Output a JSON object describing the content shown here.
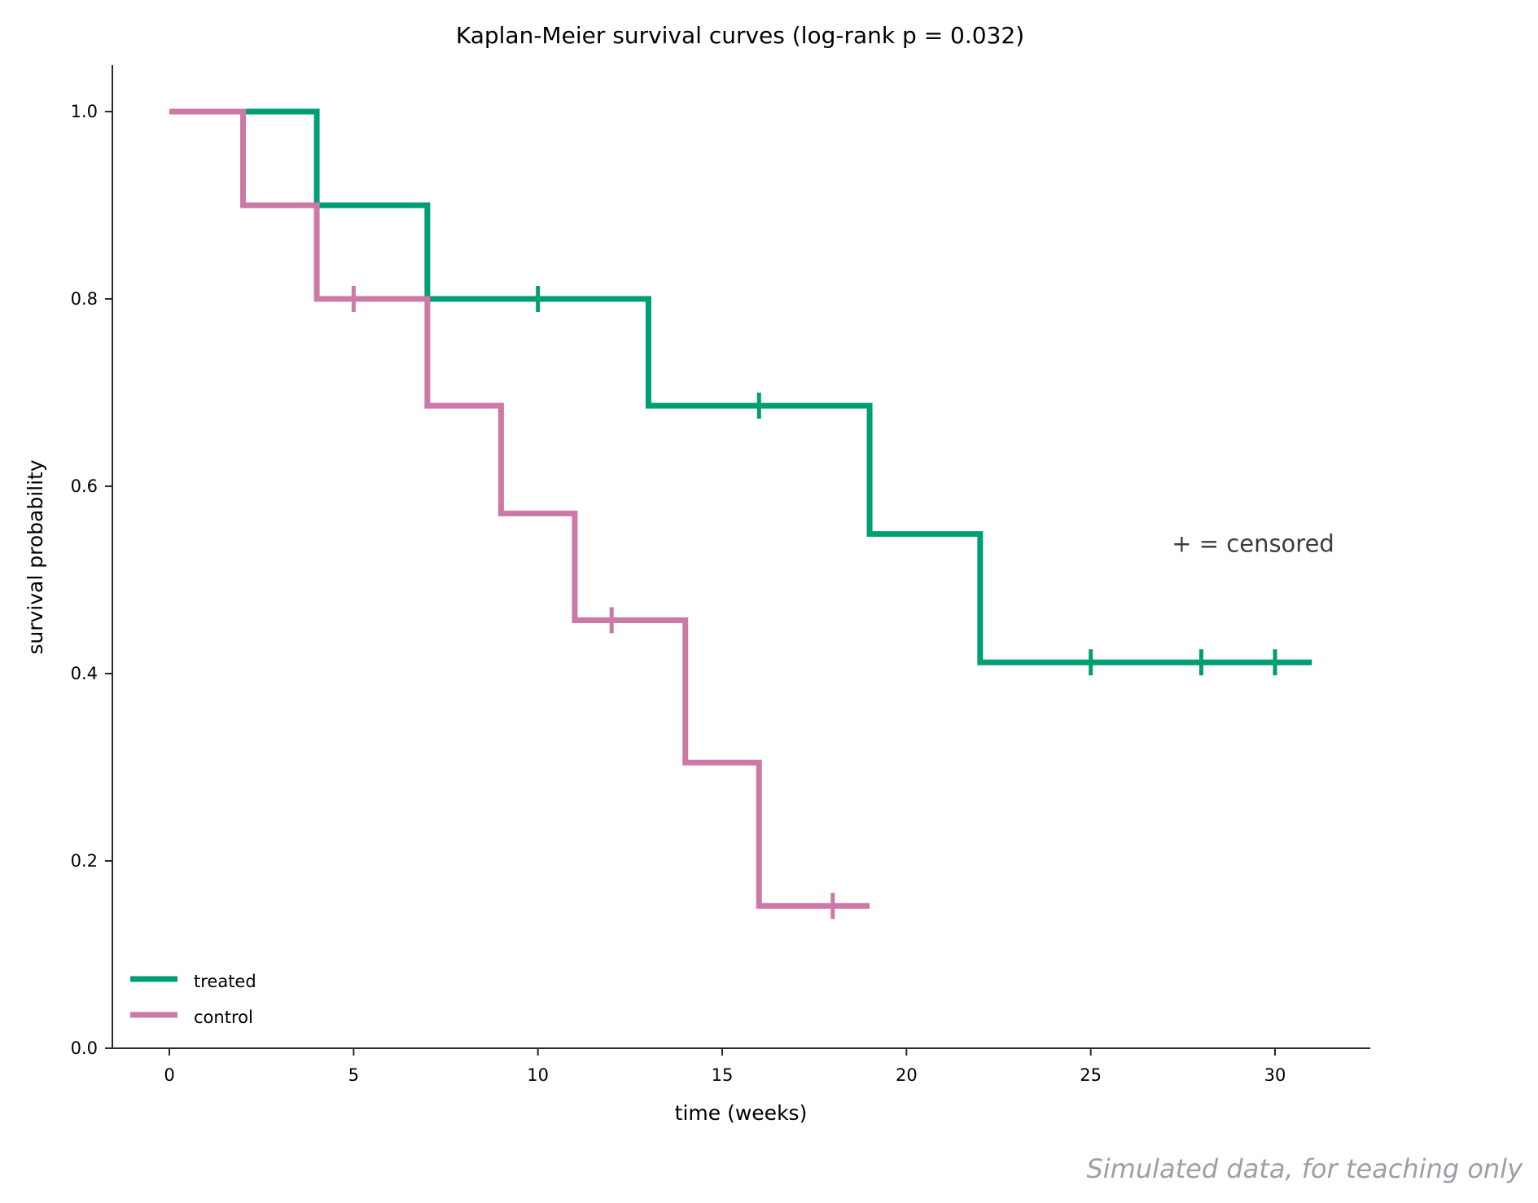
{
  "chart_data": {
    "type": "line",
    "step": "post",
    "title": "Kaplan-Meier survival curves (log-rank p = 0.032)",
    "xlabel": "time (weeks)",
    "ylabel": "survival probability",
    "xlim": [
      -1.5,
      32.5
    ],
    "ylim": [
      0,
      1.05
    ],
    "xticks": [
      0,
      5,
      10,
      15,
      20,
      25,
      30
    ],
    "xtick_labels": [
      "0",
      "5",
      "10",
      "15",
      "20",
      "25",
      "30"
    ],
    "yticks": [
      0.0,
      0.2,
      0.4,
      0.6,
      0.8,
      1.0
    ],
    "ytick_labels": [
      "0.0",
      "0.2",
      "0.4",
      "0.6",
      "0.8",
      "1.0"
    ],
    "grid": false,
    "legend_position": "lower-left",
    "series": [
      {
        "name": "treated",
        "color": "#009e73",
        "x": [
          0,
          4,
          7,
          13,
          19,
          22,
          31
        ],
        "y": [
          1.0,
          0.9,
          0.8,
          0.686,
          0.549,
          0.412,
          0.412
        ],
        "censored": [
          {
            "x": 10,
            "y": 0.8
          },
          {
            "x": 16,
            "y": 0.686
          },
          {
            "x": 25,
            "y": 0.412
          },
          {
            "x": 28,
            "y": 0.412
          },
          {
            "x": 30,
            "y": 0.412
          }
        ]
      },
      {
        "name": "control",
        "color": "#cc79a7",
        "x": [
          0,
          2,
          4,
          7,
          9,
          11,
          14,
          16,
          19
        ],
        "y": [
          1.0,
          0.9,
          0.8,
          0.686,
          0.571,
          0.457,
          0.305,
          0.152,
          0.152
        ],
        "censored": [
          {
            "x": 5,
            "y": 0.8
          },
          {
            "x": 12,
            "y": 0.457
          },
          {
            "x": 18,
            "y": 0.152
          }
        ]
      }
    ],
    "annotation": "+ = censored",
    "annotation_position": {
      "x": 27.2,
      "y": 0.53
    }
  },
  "footnote": "Simulated data, for teaching only"
}
